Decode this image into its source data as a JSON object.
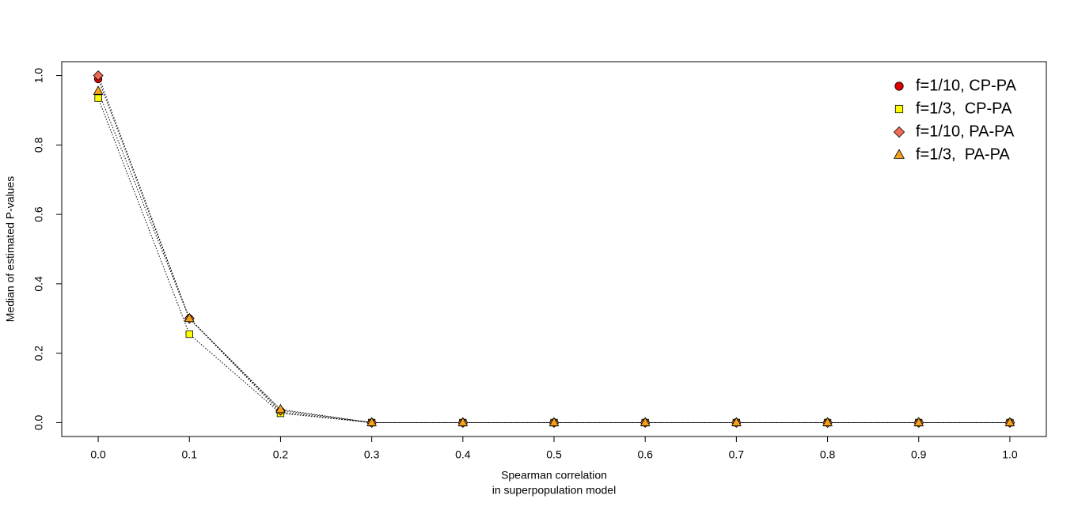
{
  "chart_data": {
    "type": "line",
    "x_label": [
      "Spearman correlation",
      "in superpopulation model"
    ],
    "y_label": "Median of estimated P-values",
    "x": [
      0,
      0.1,
      0.2,
      0.3,
      0.4,
      0.5,
      0.6,
      0.7,
      0.8,
      0.9,
      1.0
    ],
    "series": [
      {
        "name": "f=1/10, CP-PA",
        "color": "#e00000",
        "marker": "circle",
        "values": [
          0.99,
          0.3,
          0.03,
          0,
          0,
          0,
          0,
          0,
          0,
          0,
          0
        ]
      },
      {
        "name": "f=1/3,  CP-PA",
        "color": "#ffff00",
        "marker": "square",
        "values": [
          0.935,
          0.255,
          0.027,
          0,
          0,
          0,
          0,
          0,
          0,
          0,
          0
        ]
      },
      {
        "name": "f=1/10, PA-PA",
        "color": "#ec6a56",
        "marker": "diamond",
        "values": [
          1.0,
          0.3,
          0.035,
          0,
          0,
          0,
          0,
          0,
          0,
          0,
          0
        ]
      },
      {
        "name": "f=1/3,  PA-PA",
        "color": "#f5a21a",
        "marker": "triangle",
        "values": [
          0.955,
          0.3,
          0.038,
          0,
          0,
          0,
          0,
          0,
          0,
          0,
          0
        ]
      }
    ],
    "line_style": "dotted",
    "xlim": [
      -0.04,
      1.04
    ],
    "ylim": [
      -0.04,
      1.04
    ],
    "xticks": [
      {
        "value": 0,
        "label": "0.0"
      },
      {
        "value": 0.1,
        "label": "0.1"
      },
      {
        "value": 0.2,
        "label": "0.2"
      },
      {
        "value": 0.3,
        "label": "0.3"
      },
      {
        "value": 0.4,
        "label": "0.4"
      },
      {
        "value": 0.5,
        "label": "0.5"
      },
      {
        "value": 0.6,
        "label": "0.6"
      },
      {
        "value": 0.7,
        "label": "0.7"
      },
      {
        "value": 0.8,
        "label": "0.8"
      },
      {
        "value": 0.9,
        "label": "0.9"
      },
      {
        "value": 1.0,
        "label": "1.0"
      }
    ],
    "yticks": [
      {
        "value": 0,
        "label": "0.0"
      },
      {
        "value": 0.2,
        "label": "0.2"
      },
      {
        "value": 0.4,
        "label": "0.4"
      },
      {
        "value": 0.6,
        "label": "0.6"
      },
      {
        "value": 0.8,
        "label": "0.8"
      },
      {
        "value": 1.0,
        "label": "1.0"
      }
    ],
    "legend": "top-right",
    "grid": false
  }
}
